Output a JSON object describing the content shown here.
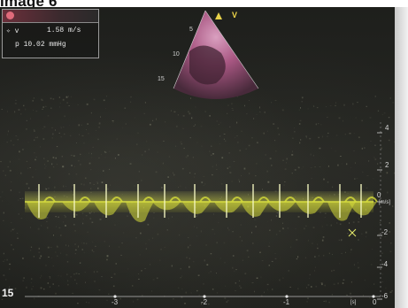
{
  "heading": "Image 6",
  "measurements": {
    "velocity_label": "v",
    "velocity_value": "1.58 m/s",
    "pressure_label": "p",
    "pressure_value": "10.02 mmHg"
  },
  "sector_view": {
    "marker": "V",
    "depths": [
      "5",
      "10",
      "15"
    ]
  },
  "velocity_scale": {
    "unit": "[m/s]",
    "ticks": [
      "4",
      "2",
      "0",
      "-2",
      "-4",
      "-6"
    ]
  },
  "time_scale": {
    "ticks": [
      "-3",
      "-2",
      "-1",
      "0"
    ],
    "unit": "[s]",
    "depth_mark": "15"
  },
  "colors": {
    "doppler_trace": "#d7dd3a",
    "background": "#232420",
    "sector": "#c86a9a"
  },
  "icons": {
    "recording": "record-dot-icon",
    "cursor": "crosshair-icon",
    "sector_marker": "triangle-icon"
  }
}
